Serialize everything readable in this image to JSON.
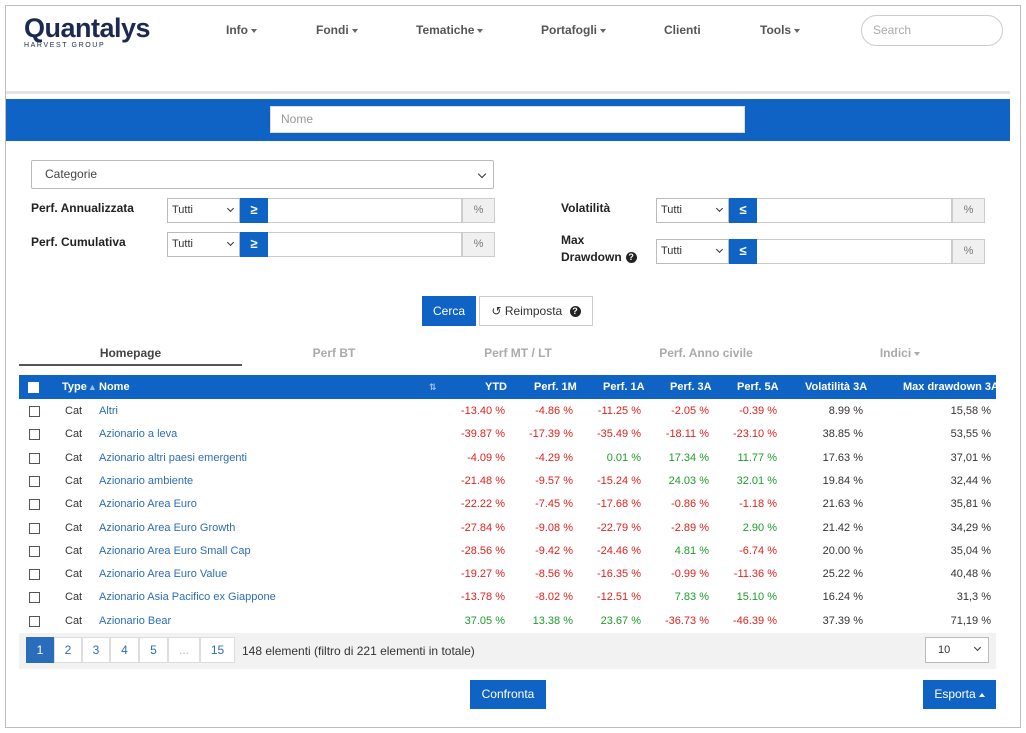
{
  "header": {
    "logo": "Quantalys",
    "logo_sub": "HARVEST GROUP",
    "nav": [
      "Info",
      "Fondi",
      "Tematiche",
      "Portafogli",
      "Clienti",
      "Tools"
    ],
    "search_placeholder": "Search"
  },
  "search_bar": {
    "placeholder": "Nome"
  },
  "filters": {
    "category": "Categorie",
    "perf_annual_label": "Perf. Annualizzata",
    "perf_cumul_label": "Perf. Cumulativa",
    "volatility_label": "Volatilità",
    "drawdown_label_1": "Max",
    "drawdown_label_2": "Drawdown",
    "select_value": "Tutti",
    "ge": "≥",
    "le": "≤",
    "pct": "%"
  },
  "buttons": {
    "search": "Cerca",
    "reset": "Reimposta"
  },
  "tabs": [
    "Homepage",
    "Perf BT",
    "Perf MT / LT",
    "Perf. Anno civile",
    "Indici"
  ],
  "table": {
    "columns": [
      "Type",
      "Nome",
      "YTD",
      "Perf. 1M",
      "Perf. 1A",
      "Perf. 3A",
      "Perf. 5A",
      "Volatilità 3A",
      "Max drawdown 3A"
    ],
    "rows": [
      {
        "type": "Cat",
        "name": "Altri",
        "ytd": "-13.40 %",
        "m1": "-4.86 %",
        "a1": "-11.25 %",
        "a3": "-2.05 %",
        "a5": "-0.39 %",
        "vol": "8.99 %",
        "dd": "15,58 %"
      },
      {
        "type": "Cat",
        "name": "Azionario a leva",
        "ytd": "-39.87 %",
        "m1": "-17.39 %",
        "a1": "-35.49 %",
        "a3": "-18.11 %",
        "a5": "-23.10 %",
        "vol": "38.85 %",
        "dd": "53,55 %"
      },
      {
        "type": "Cat",
        "name": "Azionario altri paesi emergenti",
        "ytd": "-4.09 %",
        "m1": "-4.29 %",
        "a1": "0.01 %",
        "a3": "17.34 %",
        "a5": "11.77 %",
        "vol": "17.63 %",
        "dd": "37,01 %"
      },
      {
        "type": "Cat",
        "name": "Azionario ambiente",
        "ytd": "-21.48 %",
        "m1": "-9.57 %",
        "a1": "-15.24 %",
        "a3": "24.03 %",
        "a5": "32.01 %",
        "vol": "19.84 %",
        "dd": "32,44 %"
      },
      {
        "type": "Cat",
        "name": "Azionario Area Euro",
        "ytd": "-22.22 %",
        "m1": "-7.45 %",
        "a1": "-17.68 %",
        "a3": "-0.86 %",
        "a5": "-1.18 %",
        "vol": "21.63 %",
        "dd": "35,81 %"
      },
      {
        "type": "Cat",
        "name": "Azionario Area Euro Growth",
        "ytd": "-27.84 %",
        "m1": "-9.08 %",
        "a1": "-22.79 %",
        "a3": "-2.89 %",
        "a5": "2.90 %",
        "vol": "21.42 %",
        "dd": "34,29 %"
      },
      {
        "type": "Cat",
        "name": "Azionario Area Euro Small Cap",
        "ytd": "-28.56 %",
        "m1": "-9.42 %",
        "a1": "-24.46 %",
        "a3": "4.81 %",
        "a5": "-6.74 %",
        "vol": "20.00 %",
        "dd": "35,04 %"
      },
      {
        "type": "Cat",
        "name": "Azionario Area Euro Value",
        "ytd": "-19.27 %",
        "m1": "-8.56 %",
        "a1": "-16.35 %",
        "a3": "-0.99 %",
        "a5": "-11.36 %",
        "vol": "25.22 %",
        "dd": "40,48 %"
      },
      {
        "type": "Cat",
        "name": "Azionario Asia Pacifico ex Giappone",
        "ytd": "-13.78 %",
        "m1": "-8.02 %",
        "a1": "-12.51 %",
        "a3": "7.83 %",
        "a5": "15.10 %",
        "vol": "16.24 %",
        "dd": "31,3 %"
      },
      {
        "type": "Cat",
        "name": "Azionario Bear",
        "ytd": "37.05 %",
        "m1": "13.38 %",
        "a1": "23.67 %",
        "a3": "-36.73 %",
        "a5": "-46.39 %",
        "vol": "37.39 %",
        "dd": "71,19 %"
      }
    ]
  },
  "pagination": {
    "pages": [
      "1",
      "2",
      "3",
      "4",
      "5",
      "...",
      "15"
    ],
    "info": "148 elementi (filtro di 221 elementi in totale)",
    "page_size": "10"
  },
  "footer_buttons": {
    "compare": "Confronta",
    "export": "Esporta"
  },
  "colors": {
    "primary": "#0f63c5",
    "negative": "#e0221e",
    "positive": "#1e9c2a",
    "link": "#2d6db5"
  }
}
